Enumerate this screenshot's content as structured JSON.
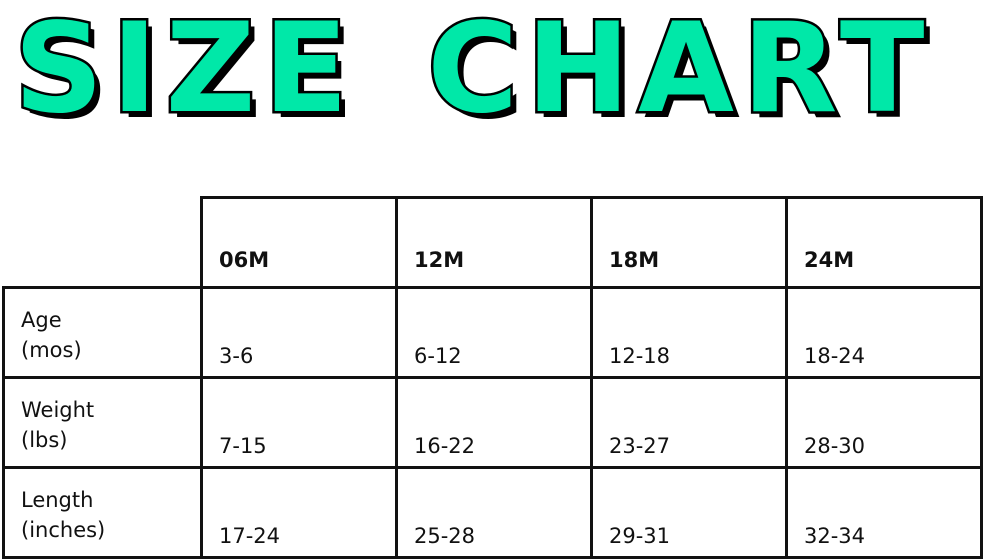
{
  "title": "SIZE CHART",
  "accent_color": "#00e8a8",
  "table": {
    "columns": [
      "06M",
      "12M",
      "18M",
      "24M"
    ],
    "rows": [
      {
        "label_line1": "Age",
        "label_line2": "(mos)",
        "values": [
          "3-6",
          "6-12",
          "12-18",
          "18-24"
        ]
      },
      {
        "label_line1": "Weight",
        "label_line2": "(lbs)",
        "values": [
          "7-15",
          "16-22",
          "23-27",
          "28-30"
        ]
      },
      {
        "label_line1": "Length",
        "label_line2": "(inches)",
        "values": [
          "17-24",
          "25-28",
          "29-31",
          "32-34"
        ]
      }
    ]
  }
}
